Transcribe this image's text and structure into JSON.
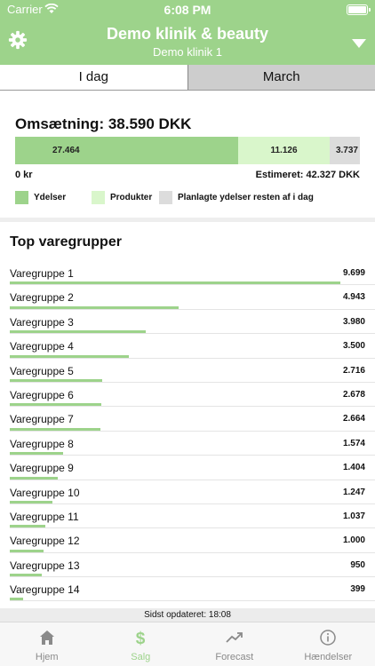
{
  "status": {
    "carrier": "Carrier",
    "time": "6:08 PM"
  },
  "header": {
    "title": "Demo klinik & beauty",
    "subtitle": "Demo klinik 1"
  },
  "tabs": [
    {
      "label": "I dag"
    },
    {
      "label": "March"
    }
  ],
  "revenue": {
    "title": "Omsætning: 38.590 DKK",
    "segments": {
      "ydelser": "27.464",
      "produkter": "11.126",
      "planlagt": "3.737"
    },
    "axis_min": "0 kr",
    "estimated": "Estimeret: 42.327 DKK"
  },
  "legend": {
    "ydelser": "Ydelser",
    "produkter": "Produkter",
    "planlagt": "Planlagte ydelser resten af i dag"
  },
  "groups_title": "Top varegrupper",
  "groups": [
    {
      "label": "Varegruppe 1",
      "value": "9.699",
      "amount": 9699
    },
    {
      "label": "Varegruppe 2",
      "value": "4.943",
      "amount": 4943
    },
    {
      "label": "Varegruppe 3",
      "value": "3.980",
      "amount": 3980
    },
    {
      "label": "Varegruppe 4",
      "value": "3.500",
      "amount": 3500
    },
    {
      "label": "Varegruppe 5",
      "value": "2.716",
      "amount": 2716
    },
    {
      "label": "Varegruppe 6",
      "value": "2.678",
      "amount": 2678
    },
    {
      "label": "Varegruppe 7",
      "value": "2.664",
      "amount": 2664
    },
    {
      "label": "Varegruppe 8",
      "value": "1.574",
      "amount": 1574
    },
    {
      "label": "Varegruppe 9",
      "value": "1.404",
      "amount": 1404
    },
    {
      "label": "Varegruppe 10",
      "value": "1.247",
      "amount": 1247
    },
    {
      "label": "Varegruppe 11",
      "value": "1.037",
      "amount": 1037
    },
    {
      "label": "Varegruppe 12",
      "value": "1.000",
      "amount": 1000
    },
    {
      "label": "Varegruppe 13",
      "value": "950",
      "amount": 950
    },
    {
      "label": "Varegruppe 14",
      "value": "399",
      "amount": 399
    }
  ],
  "updated": "Sidst opdateret: 18:08",
  "tabbar": [
    {
      "label": "Hjem",
      "icon": "home-icon"
    },
    {
      "label": "Salg",
      "icon": "dollar-icon"
    },
    {
      "label": "Forecast",
      "icon": "trend-icon"
    },
    {
      "label": "Hændelser",
      "icon": "info-icon"
    }
  ],
  "colors": {
    "accent": "#9dd38b",
    "produkter": "#d9f6cb",
    "planlagt": "#dcdcdc"
  }
}
